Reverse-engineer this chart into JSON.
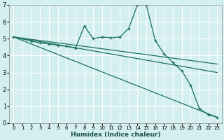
{
  "xlabel": "Humidex (Indice chaleur)",
  "bg_color": "#d4efef",
  "grid_color": "#ffffff",
  "line_color": "#1a7060",
  "xlim": [
    -0.5,
    23.5
  ],
  "ylim": [
    0,
    7
  ],
  "xticks": [
    0,
    1,
    2,
    3,
    4,
    5,
    6,
    7,
    8,
    9,
    10,
    11,
    12,
    13,
    14,
    15,
    16,
    17,
    18,
    19,
    20,
    21,
    22,
    23
  ],
  "yticks": [
    0,
    1,
    2,
    3,
    4,
    5,
    6,
    7
  ],
  "series": [
    [
      0,
      5.1
    ],
    [
      1,
      5.0
    ],
    [
      2,
      4.85
    ],
    [
      3,
      4.75
    ],
    [
      4,
      4.7
    ],
    [
      5,
      4.6
    ],
    [
      6,
      4.55
    ],
    [
      7,
      4.45
    ],
    [
      8,
      5.75
    ],
    [
      9,
      5.0
    ],
    [
      10,
      5.1
    ],
    [
      11,
      5.05
    ],
    [
      12,
      5.1
    ],
    [
      13,
      5.6
    ],
    [
      14,
      7.0
    ],
    [
      15,
      7.0
    ],
    [
      16,
      4.9
    ],
    [
      17,
      4.1
    ],
    [
      18,
      3.6
    ],
    [
      19,
      3.1
    ],
    [
      20,
      2.25
    ],
    [
      21,
      0.85
    ],
    [
      22,
      0.5
    ],
    [
      23,
      0.35
    ]
  ],
  "line2": [
    [
      0,
      5.1
    ],
    [
      23,
      0.35
    ]
  ],
  "line3": [
    [
      0,
      5.1
    ],
    [
      23,
      3.0
    ]
  ],
  "line4": [
    [
      0,
      5.1
    ],
    [
      23,
      3.5
    ]
  ]
}
